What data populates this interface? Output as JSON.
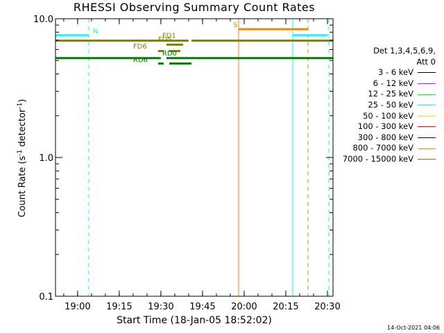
{
  "chart_data": {
    "type": "line",
    "title": "RHESSI Observing Summary Count Rates",
    "xlabel": "Start Time (18-Jan-05 18:52:02)",
    "ylabel_main": "Count Rate (s",
    "ylabel_sup1": "-1",
    "ylabel_mid": " detector",
    "ylabel_sup2": "-1",
    "ylabel_end": ")",
    "y_scale": "log",
    "ylim": [
      0.1,
      10.0
    ],
    "x_range_minutes": [
      "18:52:02",
      "20:32:00"
    ],
    "x_ticks": [
      {
        "t": "19:00",
        "label": "19:00"
      },
      {
        "t": "19:15",
        "label": "19:15"
      },
      {
        "t": "19:30",
        "label": "19:30"
      },
      {
        "t": "19:45",
        "label": "19:45"
      },
      {
        "t": "20:00",
        "label": "20:00"
      },
      {
        "t": "20:15",
        "label": "20:15"
      },
      {
        "t": "20:30",
        "label": "20:30"
      }
    ],
    "y_ticks": [
      {
        "v": 0.1,
        "label": "0.1"
      },
      {
        "v": 1.0,
        "label": "1.0"
      },
      {
        "v": 10.0,
        "label": "10.0"
      }
    ],
    "vertical_lines": [
      {
        "t": "18:52:02",
        "color": "#00ffff",
        "style": "solid"
      },
      {
        "t": "19:04:00",
        "color": "#00ffff",
        "style": "dashed"
      },
      {
        "t": "19:58:00",
        "color": "#ff7f00",
        "style": "solid"
      },
      {
        "t": "20:17:30",
        "color": "#00ffff",
        "style": "solid"
      },
      {
        "t": "20:23:00",
        "color": "#ff7f00",
        "style": "dashed"
      },
      {
        "t": "20:30:30",
        "color": "#00ffff",
        "style": "dashed"
      }
    ],
    "segments": [
      {
        "start": "18:52:02",
        "end": "19:04:00",
        "value": 7.6,
        "color": "#00ffff",
        "width": 3
      },
      {
        "start": "20:17:30",
        "end": "20:30:00",
        "value": 7.6,
        "color": "#00ffff",
        "width": 3
      },
      {
        "start": "19:58:00",
        "end": "20:23:00",
        "value": 8.4,
        "color": "#ff7f00",
        "width": 3
      },
      {
        "start": "18:52:02",
        "end": "19:40:00",
        "value": 6.95,
        "color": "#808000",
        "width": 3
      },
      {
        "start": "19:41:00",
        "end": "20:32:00",
        "value": 6.95,
        "color": "#808000",
        "width": 3
      },
      {
        "start": "19:32:00",
        "end": "19:38:00",
        "value": 6.5,
        "color": "#808000",
        "width": 3
      },
      {
        "start": "19:29:00",
        "end": "19:31:00",
        "value": 5.85,
        "color": "#808000",
        "width": 3
      },
      {
        "start": "19:33:00",
        "end": "19:37:00",
        "value": 5.85,
        "color": "#808000",
        "width": 3
      },
      {
        "start": "18:52:02",
        "end": "19:30:00",
        "value": 5.2,
        "color": "#008000",
        "width": 3
      },
      {
        "start": "19:32:00",
        "end": "20:32:00",
        "value": 5.2,
        "color": "#008000",
        "width": 3
      },
      {
        "start": "19:29:00",
        "end": "19:31:00",
        "value": 4.75,
        "color": "#008000",
        "width": 3
      },
      {
        "start": "19:33:00",
        "end": "19:41:00",
        "value": 4.75,
        "color": "#008000",
        "width": 3
      }
    ],
    "annotations": [
      {
        "text": "N",
        "t": "19:05:30",
        "value": 7.6,
        "color": "#00ffff"
      },
      {
        "text": "S",
        "t": "19:56:00",
        "value": 8.4,
        "color": "#ff7f00"
      },
      {
        "text": "FD1",
        "t": "19:30:30",
        "value": 7.05,
        "color": "#808000"
      },
      {
        "text": "FD5",
        "t": "19:29:00",
        "value": 6.6,
        "color": "#808000"
      },
      {
        "text": "FD6",
        "t": "19:20:00",
        "value": 5.9,
        "color": "#808000"
      },
      {
        "text": "RD0",
        "t": "19:30:30",
        "value": 5.25,
        "color": "#008000"
      },
      {
        "text": "RD6",
        "t": "19:20:00",
        "value": 4.7,
        "color": "#008000"
      }
    ],
    "legend_placement": "right",
    "grid": false
  },
  "legend": {
    "header1": "Det 1,3,4,5,6,9,",
    "header2": "Att 0",
    "items": [
      {
        "label": "3 - 6 keV",
        "color": "#000000"
      },
      {
        "label": "6 - 12 keV",
        "color": "#ff00ff"
      },
      {
        "label": "12 - 25 keV",
        "color": "#00ff00"
      },
      {
        "label": "25 - 50 keV",
        "color": "#00ffff"
      },
      {
        "label": "50 - 100 keV",
        "color": "#ffd700"
      },
      {
        "label": "100 - 300 keV",
        "color": "#ff0000"
      },
      {
        "label": "300 - 800 keV",
        "color": "#0000a0"
      },
      {
        "label": "800 - 7000 keV",
        "color": "#ff7f00"
      },
      {
        "label": "7000 - 15000 keV",
        "color": "#808000"
      }
    ]
  },
  "timestamp": "14-Oct-2021 04:06"
}
